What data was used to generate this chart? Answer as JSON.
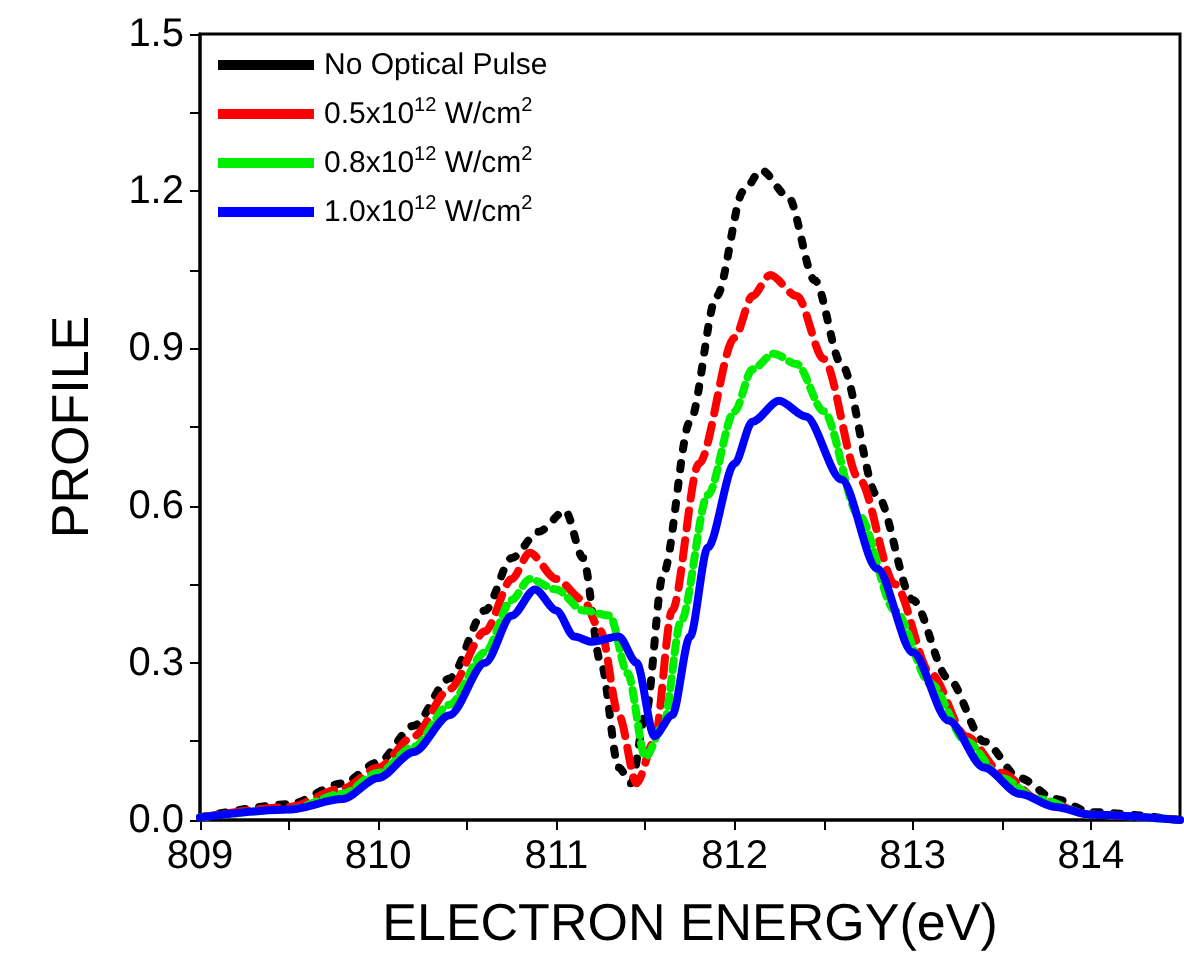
{
  "chart_data": {
    "type": "line",
    "xlabel": "ELECTRON ENERGY(eV)",
    "ylabel": "PROFILE",
    "xlim": [
      809,
      814.5
    ],
    "xticks": [
      809,
      {
        "value": 809.5,
        "label": null
      },
      810,
      {
        "value": 810.5,
        "label": null
      },
      811,
      {
        "value": 811.5,
        "label": null
      },
      812,
      {
        "value": 812.5,
        "label": null
      },
      813,
      {
        "value": 813.5,
        "label": null
      },
      814
    ],
    "ylim": [
      0,
      1.5
    ],
    "yticks": [
      {
        "value": 0,
        "label": "0.0"
      },
      {
        "value": 0.15,
        "label": null
      },
      {
        "value": 0.3,
        "label": "0.3"
      },
      {
        "value": 0.45,
        "label": null
      },
      {
        "value": 0.6,
        "label": "0.6"
      },
      {
        "value": 0.75,
        "label": null
      },
      {
        "value": 0.9,
        "label": "0.9"
      },
      {
        "value": 1.05,
        "label": null
      },
      {
        "value": 1.2,
        "label": "1.2"
      },
      {
        "value": 1.35,
        "label": null
      },
      {
        "value": 1.5,
        "label": "1.5"
      }
    ],
    "grid": false,
    "legend": "top left",
    "marker": "none",
    "series": [
      {
        "name": "No Optical Pulse",
        "color": "#000000",
        "line_style": "dotted",
        "x": [
          809,
          809.5,
          809.8,
          810.0,
          810.2,
          810.4,
          810.6,
          810.75,
          810.9,
          811.05,
          811.15,
          811.25,
          811.35,
          811.42,
          811.5,
          811.6,
          811.75,
          811.9,
          812.05,
          812.15,
          812.3,
          812.45,
          812.6,
          812.8,
          813.0,
          813.2,
          813.4,
          813.6,
          813.8,
          814.0,
          814.5
        ],
        "values": [
          0.005,
          0.03,
          0.07,
          0.11,
          0.18,
          0.27,
          0.4,
          0.5,
          0.55,
          0.59,
          0.5,
          0.3,
          0.1,
          0.07,
          0.2,
          0.47,
          0.76,
          1.0,
          1.2,
          1.24,
          1.19,
          1.03,
          0.87,
          0.62,
          0.42,
          0.27,
          0.15,
          0.08,
          0.04,
          0.015,
          0.0
        ]
      },
      {
        "name": "0.5x10$^{12}$ W/cm$^{2}$",
        "color": "#ff0000",
        "line_style": "dashed",
        "x": [
          809,
          809.5,
          809.8,
          810.0,
          810.2,
          810.4,
          810.6,
          810.75,
          810.85,
          811.0,
          811.15,
          811.25,
          811.35,
          811.45,
          811.55,
          811.65,
          811.8,
          812.0,
          812.1,
          812.2,
          812.35,
          812.5,
          812.7,
          812.9,
          813.1,
          813.3,
          813.5,
          813.7,
          814.0,
          814.5
        ],
        "values": [
          0.005,
          0.025,
          0.06,
          0.1,
          0.16,
          0.25,
          0.36,
          0.46,
          0.51,
          0.46,
          0.42,
          0.36,
          0.2,
          0.07,
          0.15,
          0.4,
          0.68,
          0.92,
          1.0,
          1.04,
          1.0,
          0.88,
          0.65,
          0.45,
          0.28,
          0.16,
          0.09,
          0.04,
          0.01,
          0.0
        ]
      },
      {
        "name": "0.8x10$^{12}$ W/cm$^{2}$",
        "color": "#00ee00",
        "line_style": "dashed",
        "x": [
          809,
          809.5,
          809.8,
          810.0,
          810.2,
          810.4,
          810.6,
          810.75,
          810.85,
          811.0,
          811.15,
          811.3,
          811.4,
          811.5,
          811.6,
          811.7,
          811.85,
          812.0,
          812.1,
          812.22,
          812.35,
          812.5,
          812.7,
          812.9,
          813.1,
          813.3,
          813.5,
          813.7,
          814.0,
          814.5
        ],
        "values": [
          0.005,
          0.02,
          0.05,
          0.09,
          0.14,
          0.22,
          0.32,
          0.42,
          0.46,
          0.44,
          0.4,
          0.39,
          0.28,
          0.12,
          0.18,
          0.38,
          0.62,
          0.78,
          0.86,
          0.89,
          0.87,
          0.78,
          0.58,
          0.4,
          0.26,
          0.15,
          0.08,
          0.04,
          0.01,
          0.0
        ]
      },
      {
        "name": "1.0x10$^{12}$ W/cm$^{2}$",
        "color": "#0000ff",
        "line_style": "solid",
        "x": [
          809,
          809.5,
          809.8,
          810.0,
          810.2,
          810.4,
          810.6,
          810.75,
          810.88,
          811.0,
          811.1,
          811.2,
          811.35,
          811.45,
          811.55,
          811.65,
          811.75,
          811.85,
          812.0,
          812.1,
          812.25,
          812.4,
          812.6,
          812.8,
          813.0,
          813.2,
          813.4,
          813.6,
          813.8,
          814.0,
          814.5
        ],
        "values": [
          0.005,
          0.02,
          0.04,
          0.08,
          0.13,
          0.2,
          0.3,
          0.39,
          0.44,
          0.4,
          0.35,
          0.34,
          0.35,
          0.3,
          0.16,
          0.2,
          0.35,
          0.52,
          0.68,
          0.76,
          0.8,
          0.77,
          0.65,
          0.48,
          0.32,
          0.19,
          0.1,
          0.05,
          0.025,
          0.01,
          0.0
        ]
      }
    ]
  }
}
